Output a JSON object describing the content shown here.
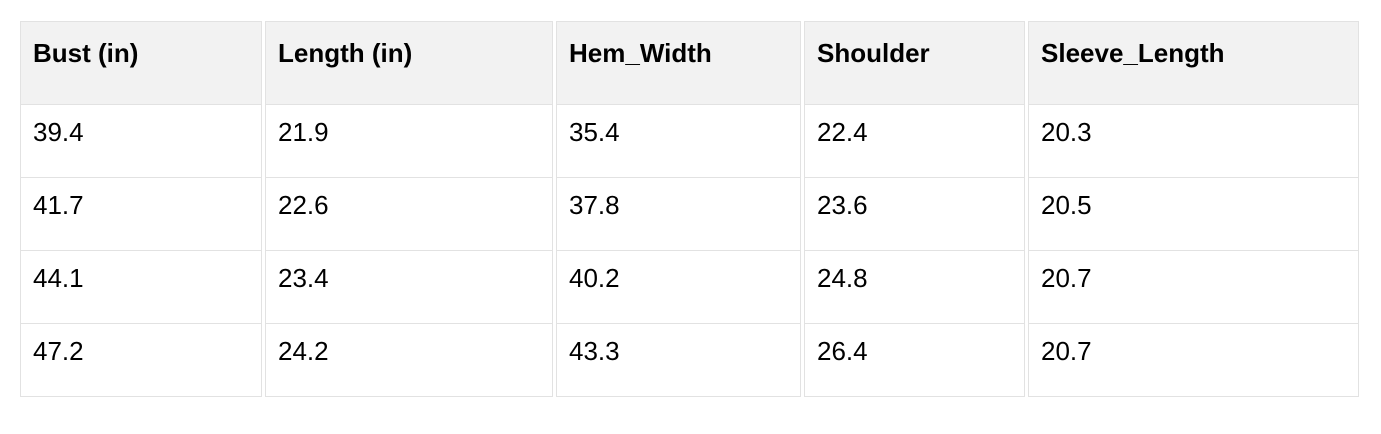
{
  "chart_data": {
    "type": "table",
    "columns": [
      "Bust (in)",
      "Length (in)",
      "Hem_Width",
      "Shoulder",
      "Sleeve_Length"
    ],
    "rows": [
      [
        "39.4",
        "21.9",
        "35.4",
        "22.4",
        "20.3"
      ],
      [
        "41.7",
        "22.6",
        "37.8",
        "23.6",
        "20.5"
      ],
      [
        "44.1",
        "23.4",
        "40.2",
        "24.8",
        "20.7"
      ],
      [
        "47.2",
        "24.2",
        "43.3",
        "26.4",
        "20.7"
      ]
    ]
  },
  "colors": {
    "page_bg": "#ffffff",
    "header_bg": "#f2f2f2",
    "border": "#e2e2e2",
    "text": "#000000"
  }
}
